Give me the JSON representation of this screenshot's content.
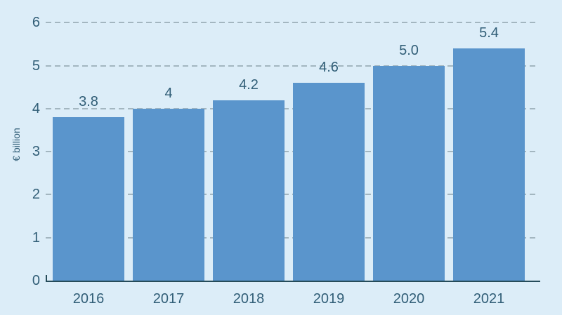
{
  "chart_data": {
    "type": "bar",
    "title": "",
    "categories": [
      "2016",
      "2017",
      "2018",
      "2019",
      "2020",
      "2021"
    ],
    "values": [
      3.8,
      4,
      4.2,
      4.6,
      5.0,
      5.4
    ],
    "bar_labels": [
      "3.8",
      "4",
      "4.2",
      "4.6",
      "5.0",
      "5.4"
    ],
    "xlabel": "",
    "ylabel": "€ billion",
    "ylim": [
      0,
      6
    ],
    "yticks": [
      0,
      1,
      2,
      3,
      4,
      5,
      6
    ],
    "grid": "horizontal-dashed",
    "legend": "none",
    "colors": {
      "background": "#dcedf8",
      "bar": "#5a95cc",
      "text": "#315e77",
      "gridline": "#a3b6c0",
      "axis": "#264c5a"
    }
  }
}
